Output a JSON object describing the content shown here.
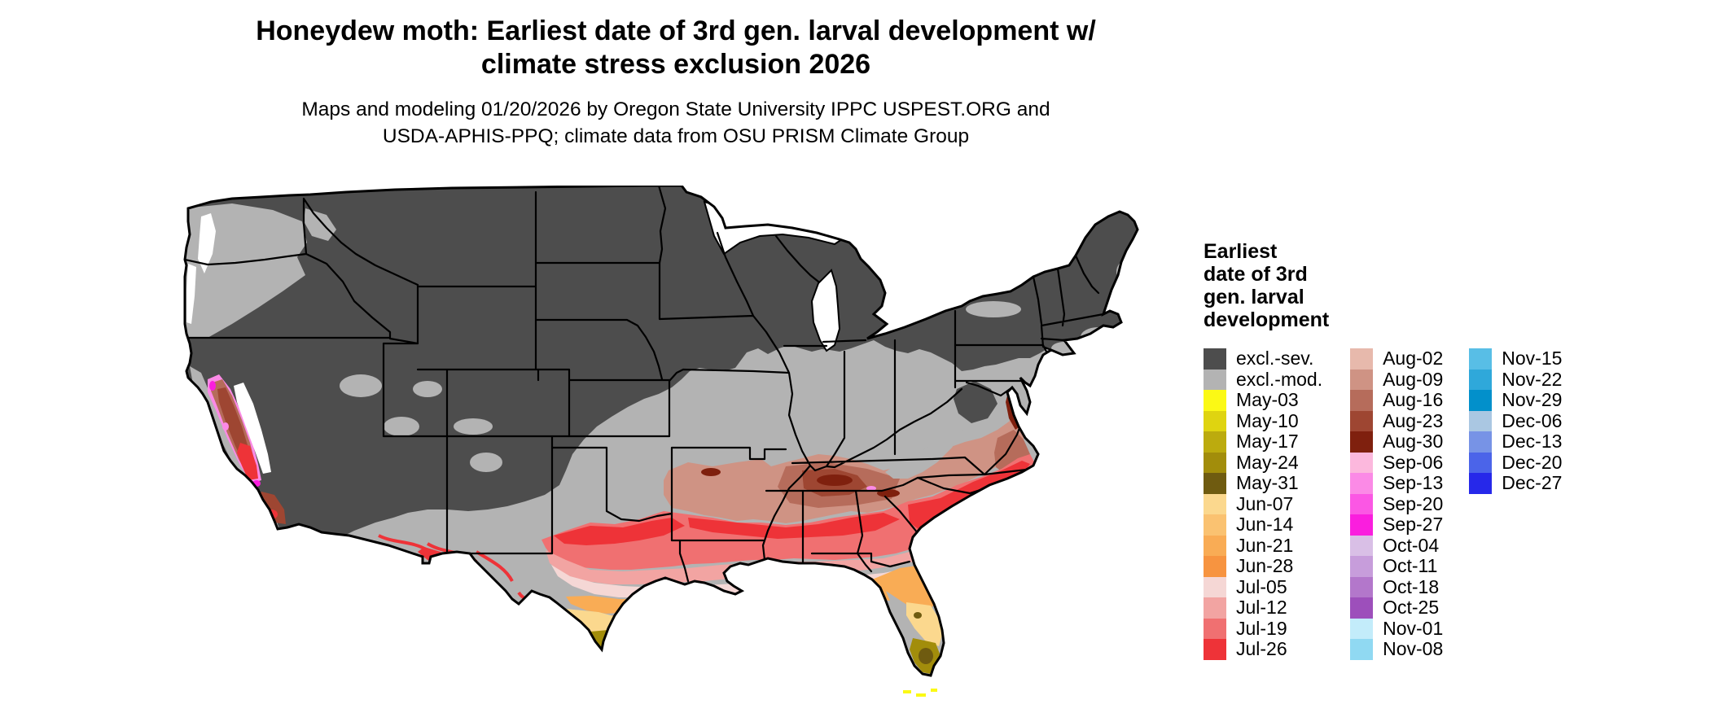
{
  "title": {
    "line1": "Honeydew moth: Earliest date of 3rd gen. larval development w/",
    "line2": "climate stress exclusion 2026"
  },
  "subtitle": {
    "line1": "Maps and modeling 01/20/2026 by Oregon State University IPPC USPEST.ORG and",
    "line2": "USDA-APHIS-PPQ; climate data from OSU PRISM Climate Group"
  },
  "legend": {
    "title_line1": "Earliest",
    "title_line2": "date of 3rd",
    "title_line3": "gen. larval",
    "title_line4": "development",
    "col1": [
      {
        "label": "excl.-sev.",
        "color": "#4d4d4d"
      },
      {
        "label": "excl.-mod.",
        "color": "#b3b3b3"
      },
      {
        "label": "May-03",
        "color": "#fbf915"
      },
      {
        "label": "May-10",
        "color": "#dfd410"
      },
      {
        "label": "May-17",
        "color": "#bcab0e"
      },
      {
        "label": "May-24",
        "color": "#a28d0b"
      },
      {
        "label": "May-31",
        "color": "#6f5b10"
      },
      {
        "label": "Jun-07",
        "color": "#fbd88e"
      },
      {
        "label": "Jun-14",
        "color": "#fac271"
      },
      {
        "label": "Jun-21",
        "color": "#f9ac55"
      },
      {
        "label": "Jun-28",
        "color": "#f79440"
      },
      {
        "label": "Jul-05",
        "color": "#f5d7d5"
      },
      {
        "label": "Jul-12",
        "color": "#f2a4a2"
      },
      {
        "label": "Jul-19",
        "color": "#f07071"
      },
      {
        "label": "Jul-26",
        "color": "#ee3338"
      }
    ],
    "col2": [
      {
        "label": "Aug-02",
        "color": "#e7b9ac"
      },
      {
        "label": "Aug-09",
        "color": "#cf9384"
      },
      {
        "label": "Aug-16",
        "color": "#b66c5b"
      },
      {
        "label": "Aug-23",
        "color": "#9e4632"
      },
      {
        "label": "Aug-30",
        "color": "#7f200e"
      },
      {
        "label": "Sep-06",
        "color": "#fcb8dd"
      },
      {
        "label": "Sep-13",
        "color": "#fb8ae6"
      },
      {
        "label": "Sep-20",
        "color": "#fb57e4"
      },
      {
        "label": "Sep-27",
        "color": "#fa1ede"
      },
      {
        "label": "Oct-04",
        "color": "#d9bfe6"
      },
      {
        "label": "Oct-11",
        "color": "#c79ddb"
      },
      {
        "label": "Oct-18",
        "color": "#b377cb"
      },
      {
        "label": "Oct-25",
        "color": "#9d4fbb"
      },
      {
        "label": "Nov-01",
        "color": "#c3ecfa"
      },
      {
        "label": "Nov-08",
        "color": "#90d9f2"
      }
    ],
    "col3": [
      {
        "label": "Nov-15",
        "color": "#58bee6"
      },
      {
        "label": "Nov-22",
        "color": "#2fa8da"
      },
      {
        "label": "Nov-29",
        "color": "#0290cb"
      },
      {
        "label": "Dec-06",
        "color": "#aac7e2"
      },
      {
        "label": "Dec-13",
        "color": "#7793e6"
      },
      {
        "label": "Dec-20",
        "color": "#4b64e9"
      },
      {
        "label": "Dec-27",
        "color": "#2628ea"
      }
    ]
  },
  "palette": {
    "excl_severe": "#4d4d4d",
    "excl_moderate": "#b3b3b3",
    "white": "#ffffff",
    "aug02": "#e7b9ac",
    "aug09": "#cf9384",
    "aug16": "#b66c5b",
    "aug23": "#9e4632",
    "aug30": "#7f200e",
    "jul26": "#ee3338",
    "jul19": "#f07071",
    "jul12": "#f2a4a2",
    "jul05": "#f5d7d5",
    "jun28": "#f79440",
    "jun21": "#f9ac55",
    "jun14": "#fac271",
    "jun07": "#fbd88e",
    "may31": "#6f5b10",
    "may24": "#a28d0b",
    "may03": "#fbf915",
    "sep13": "#fb8ae6",
    "sep27": "#fa1ede",
    "border": "#000000"
  }
}
